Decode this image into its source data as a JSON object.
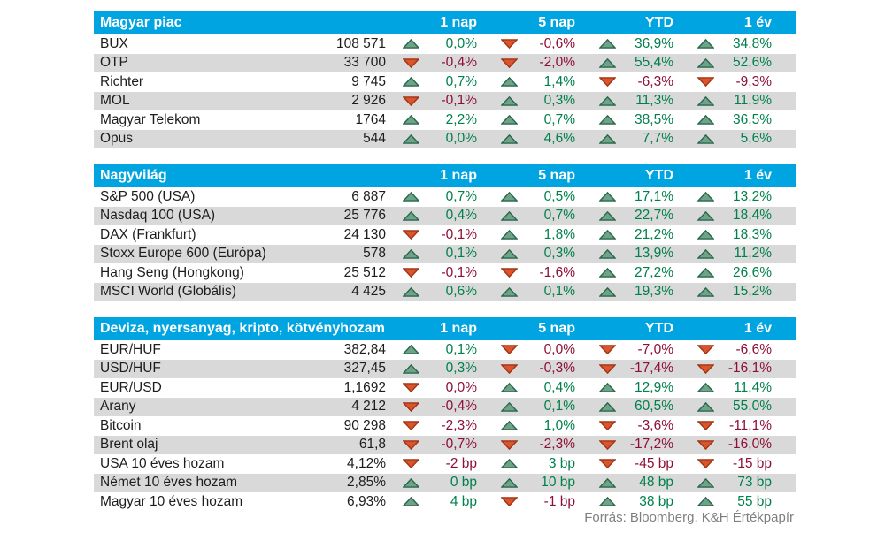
{
  "colors": {
    "header_bg": "#00a4e0",
    "header_text": "#ffffff",
    "stripe": "#d9d9d9",
    "row_text": "#1d1d1b",
    "up_text": "#00804c",
    "down_text": "#8e1036",
    "up_fill": "#6fa287",
    "up_stroke": "#28684f",
    "down_fill": "#d8552d",
    "down_stroke": "#a33312",
    "footer_text": "#7f7f7f"
  },
  "chart_data": [
    {
      "type": "table",
      "title": "Magyar piac",
      "columns": [
        "1 nap",
        "5 nap",
        "YTD",
        "1 év"
      ],
      "rows": [
        {
          "name": "BUX",
          "value": "108 571",
          "changes": [
            {
              "dir": "up",
              "text": "0,0%"
            },
            {
              "dir": "down",
              "text": "-0,6%"
            },
            {
              "dir": "up",
              "text": "36,9%"
            },
            {
              "dir": "up",
              "text": "34,8%"
            }
          ]
        },
        {
          "name": "OTP",
          "value": "33 700",
          "changes": [
            {
              "dir": "down",
              "text": "-0,4%"
            },
            {
              "dir": "down",
              "text": "-2,0%"
            },
            {
              "dir": "up",
              "text": "55,4%"
            },
            {
              "dir": "up",
              "text": "52,6%"
            }
          ]
        },
        {
          "name": "Richter",
          "value": "9 745",
          "changes": [
            {
              "dir": "up",
              "text": "0,7%"
            },
            {
              "dir": "up",
              "text": "1,4%"
            },
            {
              "dir": "down",
              "text": "-6,3%"
            },
            {
              "dir": "down",
              "text": "-9,3%"
            }
          ]
        },
        {
          "name": "MOL",
          "value": "2 926",
          "changes": [
            {
              "dir": "down",
              "text": "-0,1%"
            },
            {
              "dir": "up",
              "text": "0,3%"
            },
            {
              "dir": "up",
              "text": "11,3%"
            },
            {
              "dir": "up",
              "text": "11,9%"
            }
          ]
        },
        {
          "name": "Magyar Telekom",
          "value": "1764",
          "changes": [
            {
              "dir": "up",
              "text": "2,2%"
            },
            {
              "dir": "up",
              "text": "0,7%"
            },
            {
              "dir": "up",
              "text": "38,5%"
            },
            {
              "dir": "up",
              "text": "36,5%"
            }
          ]
        },
        {
          "name": "Opus",
          "value": "544",
          "changes": [
            {
              "dir": "up",
              "text": "0,0%"
            },
            {
              "dir": "up",
              "text": "4,6%"
            },
            {
              "dir": "up",
              "text": "7,7%"
            },
            {
              "dir": "up",
              "text": "5,6%"
            }
          ]
        }
      ]
    },
    {
      "type": "table",
      "title": "Nagyvilág",
      "columns": [
        "1 nap",
        "5 nap",
        "YTD",
        "1 év"
      ],
      "rows": [
        {
          "name": "S&P 500 (USA)",
          "value": "6 887",
          "changes": [
            {
              "dir": "up",
              "text": "0,7%"
            },
            {
              "dir": "up",
              "text": "0,5%"
            },
            {
              "dir": "up",
              "text": "17,1%"
            },
            {
              "dir": "up",
              "text": "13,2%"
            }
          ]
        },
        {
          "name": "Nasdaq 100 (USA)",
          "value": "25 776",
          "changes": [
            {
              "dir": "up",
              "text": "0,4%"
            },
            {
              "dir": "up",
              "text": "0,7%"
            },
            {
              "dir": "up",
              "text": "22,7%"
            },
            {
              "dir": "up",
              "text": "18,4%"
            }
          ]
        },
        {
          "name": "DAX (Frankfurt)",
          "value": "24 130",
          "changes": [
            {
              "dir": "down",
              "text": "-0,1%"
            },
            {
              "dir": "up",
              "text": "1,8%"
            },
            {
              "dir": "up",
              "text": "21,2%"
            },
            {
              "dir": "up",
              "text": "18,3%"
            }
          ]
        },
        {
          "name": "Stoxx Europe 600 (Európa)",
          "value": "578",
          "changes": [
            {
              "dir": "up",
              "text": "0,1%"
            },
            {
              "dir": "up",
              "text": "0,3%"
            },
            {
              "dir": "up",
              "text": "13,9%"
            },
            {
              "dir": "up",
              "text": "11,2%"
            }
          ]
        },
        {
          "name": "Hang Seng (Hongkong)",
          "value": "25 512",
          "changes": [
            {
              "dir": "down",
              "text": "-0,1%"
            },
            {
              "dir": "down",
              "text": "-1,6%"
            },
            {
              "dir": "up",
              "text": "27,2%"
            },
            {
              "dir": "up",
              "text": "26,6%"
            }
          ]
        },
        {
          "name": "MSCI World (Globális)",
          "value": "4 425",
          "changes": [
            {
              "dir": "up",
              "text": "0,6%"
            },
            {
              "dir": "up",
              "text": "0,1%"
            },
            {
              "dir": "up",
              "text": "19,3%"
            },
            {
              "dir": "up",
              "text": "15,2%"
            }
          ]
        }
      ]
    },
    {
      "type": "table",
      "title": "Deviza, nyersanyag, kripto, kötvényhozam",
      "columns": [
        "1 nap",
        "5 nap",
        "YTD",
        "1 év"
      ],
      "rows": [
        {
          "name": "EUR/HUF",
          "value": "382,84",
          "changes": [
            {
              "dir": "up",
              "text": "0,1%"
            },
            {
              "dir": "down",
              "text": "0,0%"
            },
            {
              "dir": "down",
              "text": "-7,0%"
            },
            {
              "dir": "down",
              "text": "-6,6%"
            }
          ]
        },
        {
          "name": "USD/HUF",
          "value": "327,45",
          "changes": [
            {
              "dir": "up",
              "text": "0,3%"
            },
            {
              "dir": "down",
              "text": "-0,3%"
            },
            {
              "dir": "down",
              "text": "-17,4%"
            },
            {
              "dir": "down",
              "text": "-16,1%"
            }
          ]
        },
        {
          "name": "EUR/USD",
          "value": "1,1692",
          "changes": [
            {
              "dir": "down",
              "text": "0,0%"
            },
            {
              "dir": "up",
              "text": "0,4%"
            },
            {
              "dir": "up",
              "text": "12,9%"
            },
            {
              "dir": "up",
              "text": "11,4%"
            }
          ]
        },
        {
          "name": "Arany",
          "value": "4 212",
          "changes": [
            {
              "dir": "down",
              "text": "-0,4%"
            },
            {
              "dir": "up",
              "text": "0,1%"
            },
            {
              "dir": "up",
              "text": "60,5%"
            },
            {
              "dir": "up",
              "text": "55,0%"
            }
          ]
        },
        {
          "name": "Bitcoin",
          "value": "90 298",
          "changes": [
            {
              "dir": "down",
              "text": "-2,3%"
            },
            {
              "dir": "up",
              "text": "1,0%"
            },
            {
              "dir": "down",
              "text": "-3,6%"
            },
            {
              "dir": "down",
              "text": "-11,1%"
            }
          ]
        },
        {
          "name": "Brent olaj",
          "value": "61,8",
          "changes": [
            {
              "dir": "down",
              "text": "-0,7%"
            },
            {
              "dir": "down",
              "text": "-2,3%"
            },
            {
              "dir": "down",
              "text": "-17,2%"
            },
            {
              "dir": "down",
              "text": "-16,0%"
            }
          ]
        },
        {
          "name": "USA 10 éves hozam",
          "value": "4,12%",
          "changes": [
            {
              "dir": "down",
              "text": "-2 bp"
            },
            {
              "dir": "up",
              "text": "3 bp"
            },
            {
              "dir": "down",
              "text": "-45 bp"
            },
            {
              "dir": "down",
              "text": "-15 bp"
            }
          ]
        },
        {
          "name": "Német 10 éves hozam",
          "value": "2,85%",
          "changes": [
            {
              "dir": "up",
              "text": "0 bp"
            },
            {
              "dir": "up",
              "text": "10 bp"
            },
            {
              "dir": "up",
              "text": "48 bp"
            },
            {
              "dir": "up",
              "text": "73 bp"
            }
          ]
        },
        {
          "name": "Magyar 10 éves hozam",
          "value": "6,93%",
          "changes": [
            {
              "dir": "up",
              "text": "4 bp"
            },
            {
              "dir": "down",
              "text": "-1 bp"
            },
            {
              "dir": "up",
              "text": "38 bp"
            },
            {
              "dir": "up",
              "text": "55 bp"
            }
          ]
        }
      ]
    }
  ],
  "footer": {
    "source": "Forrás: Bloomberg, K&H Értékpapír"
  }
}
